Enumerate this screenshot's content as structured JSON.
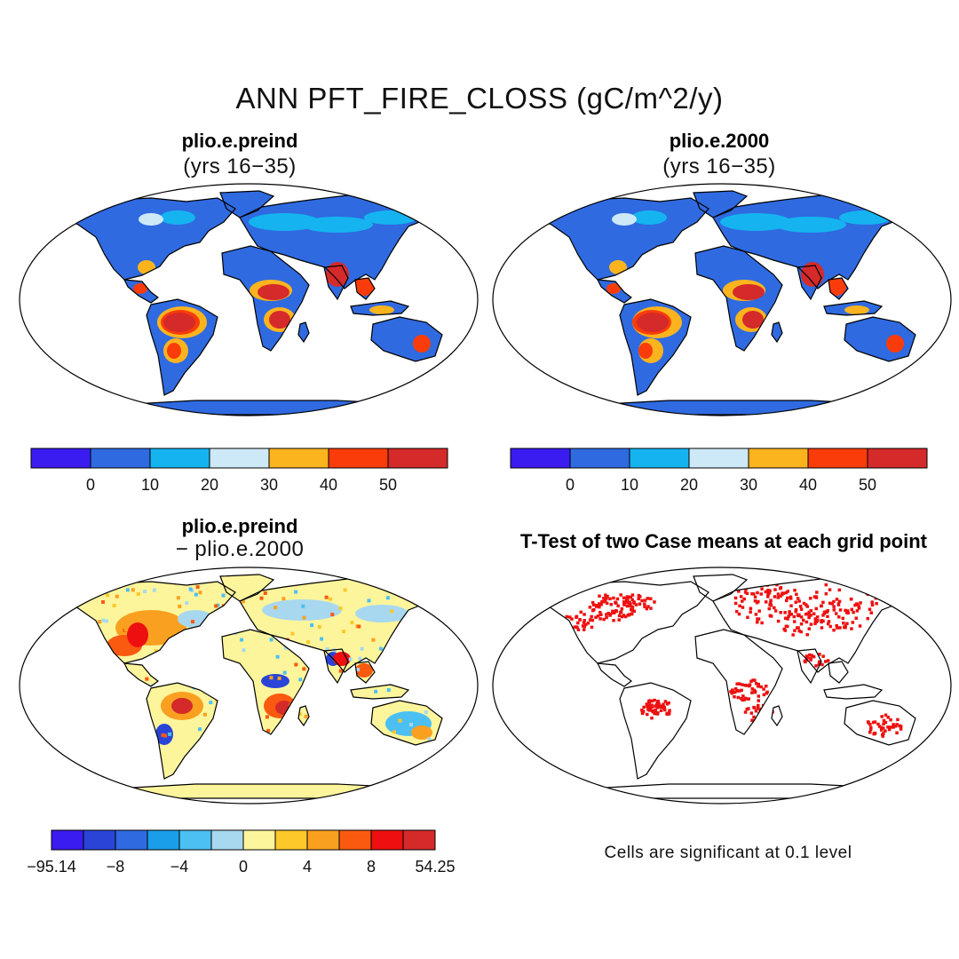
{
  "title": "ANN PFT_FIRE_CLOSS (gC/m^2/y)",
  "panels": [
    {
      "title": "plio.e.preind",
      "subtitle": "(yrs 16−35)",
      "style": "field",
      "variant": 0
    },
    {
      "title": "plio.e.2000",
      "subtitle": "(yrs 16−35)",
      "style": "field",
      "variant": 1
    },
    {
      "title": "plio.e.preind",
      "subtitle": "− plio.e.2000",
      "style": "diff",
      "variant": 0
    },
    {
      "title": "T-Test of two Case means at each grid point",
      "subtitle": "",
      "style": "ttest",
      "variant": 0
    }
  ],
  "colorbars": {
    "field": {
      "colors": [
        "#3a1cf0",
        "#2f6ae0",
        "#15b4f0",
        "#cde9f7",
        "#fcb41e",
        "#fa3c0a",
        "#d42a2a"
      ],
      "labels": [
        "0",
        "10",
        "20",
        "30",
        "40",
        "50"
      ]
    },
    "diff": {
      "colors": [
        "#3a1cf0",
        "#2a44d8",
        "#2f6ae0",
        "#1a9eea",
        "#4cc0f2",
        "#a8d8ef",
        "#fdf59c",
        "#fcc82a",
        "#faa020",
        "#fa5a10",
        "#ee1010",
        "#d42a2a"
      ],
      "labels": [
        "−95.14",
        "−8",
        "−4",
        "0",
        "4",
        "8",
        "54.25"
      ]
    }
  },
  "footnote": "Cells are significant at 0.1 level",
  "colors": {
    "field_base": "#2f6ae0",
    "diff_base": "#fdf59c",
    "ttest_mark": "#ee1010",
    "outline": "#000000"
  }
}
